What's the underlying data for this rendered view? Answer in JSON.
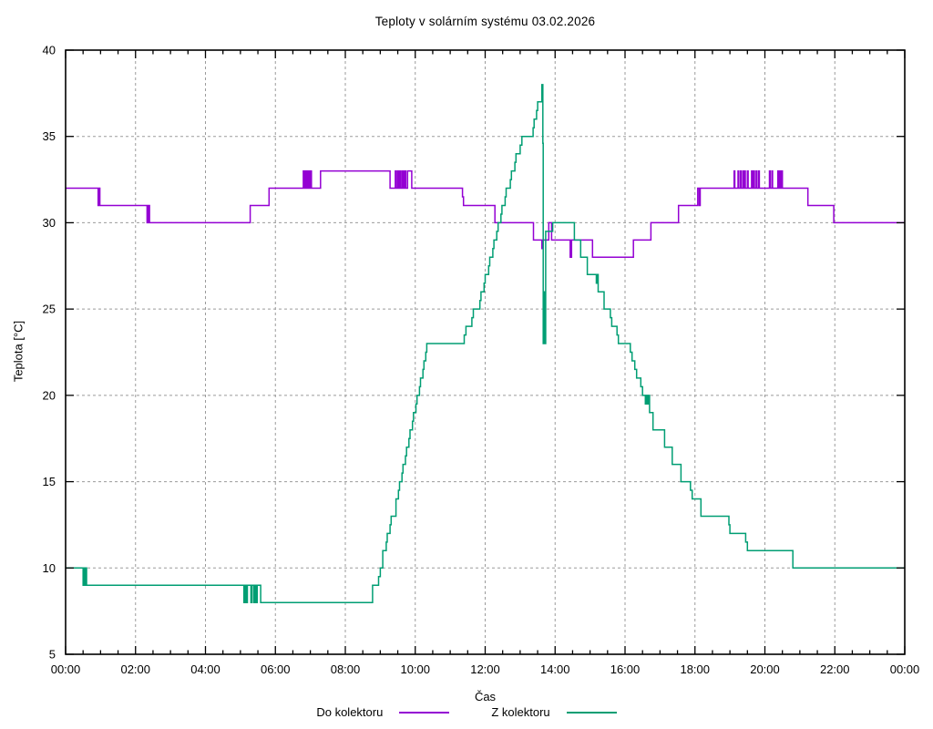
{
  "chart_data": {
    "type": "line",
    "title": "Teploty v solárním systému 03.02.2026",
    "xlabel": "Čas",
    "ylabel": "Teplota [°C]",
    "xlim": [
      0,
      24
    ],
    "ylim": [
      5,
      40
    ],
    "grid": true,
    "grid_color": "#9b9b9b",
    "axis_color": "#000000",
    "background": "#ffffff",
    "legend_position": "bottom-center",
    "x_tick_hours": [
      0,
      2,
      4,
      6,
      8,
      10,
      12,
      14,
      16,
      18,
      20,
      22,
      24
    ],
    "x_tick_labels": [
      "00:00",
      "02:00",
      "04:00",
      "06:00",
      "08:00",
      "10:00",
      "12:00",
      "14:00",
      "16:00",
      "18:00",
      "20:00",
      "22:00",
      "00:00"
    ],
    "x_minor_step_hours": 0.5,
    "y_tick_values": [
      5,
      10,
      15,
      20,
      25,
      30,
      35,
      40
    ],
    "series": [
      {
        "name": "Do kolektoru",
        "color": "#9400d3",
        "style": "steps",
        "points": [
          [
            0.0,
            32
          ],
          [
            0.93,
            31
          ],
          [
            0.95,
            32
          ],
          [
            0.98,
            31
          ],
          [
            2.33,
            30
          ],
          [
            2.36,
            31
          ],
          [
            2.4,
            30
          ],
          [
            5.28,
            31
          ],
          [
            5.82,
            32
          ],
          [
            6.8,
            33
          ],
          [
            6.83,
            32
          ],
          [
            6.86,
            33
          ],
          [
            6.89,
            32
          ],
          [
            6.93,
            33
          ],
          [
            6.96,
            32
          ],
          [
            7.0,
            33
          ],
          [
            7.03,
            32
          ],
          [
            7.29,
            33
          ],
          [
            9.28,
            32
          ],
          [
            9.43,
            33
          ],
          [
            9.46,
            32
          ],
          [
            9.5,
            33
          ],
          [
            9.53,
            32
          ],
          [
            9.56,
            33
          ],
          [
            9.59,
            32
          ],
          [
            9.63,
            33
          ],
          [
            9.66,
            32
          ],
          [
            9.7,
            33
          ],
          [
            9.73,
            32
          ],
          [
            9.78,
            33
          ],
          [
            9.9,
            32
          ],
          [
            11.35,
            31.5
          ],
          [
            11.38,
            31
          ],
          [
            12.28,
            30
          ],
          [
            13.38,
            29
          ],
          [
            13.62,
            28.5
          ],
          [
            13.64,
            29
          ],
          [
            13.82,
            30
          ],
          [
            13.9,
            29
          ],
          [
            14.43,
            28
          ],
          [
            14.47,
            29
          ],
          [
            15.07,
            28
          ],
          [
            16.24,
            29
          ],
          [
            16.74,
            30
          ],
          [
            17.53,
            31
          ],
          [
            18.08,
            32
          ],
          [
            18.12,
            31
          ],
          [
            18.15,
            32
          ],
          [
            19.12,
            33
          ],
          [
            19.14,
            32
          ],
          [
            19.23,
            33
          ],
          [
            19.25,
            32
          ],
          [
            19.3,
            33
          ],
          [
            19.32,
            32
          ],
          [
            19.37,
            33
          ],
          [
            19.39,
            32
          ],
          [
            19.42,
            33
          ],
          [
            19.44,
            32
          ],
          [
            19.5,
            33
          ],
          [
            19.52,
            32
          ],
          [
            19.62,
            33
          ],
          [
            19.64,
            32
          ],
          [
            19.68,
            33
          ],
          [
            19.7,
            32
          ],
          [
            19.75,
            33
          ],
          [
            19.77,
            32
          ],
          [
            19.82,
            33
          ],
          [
            19.84,
            32
          ],
          [
            20.13,
            33
          ],
          [
            20.15,
            32
          ],
          [
            20.2,
            33
          ],
          [
            20.22,
            32
          ],
          [
            20.37,
            33
          ],
          [
            20.39,
            32
          ],
          [
            20.43,
            33
          ],
          [
            20.45,
            32
          ],
          [
            20.48,
            33
          ],
          [
            20.5,
            32
          ],
          [
            21.23,
            31
          ],
          [
            21.97,
            30
          ]
        ]
      },
      {
        "name": "Z kolektoru",
        "color": "#009e73",
        "style": "steps",
        "points": [
          [
            0.0,
            10
          ],
          [
            0.5,
            9
          ],
          [
            0.52,
            10
          ],
          [
            0.55,
            9
          ],
          [
            0.57,
            10
          ],
          [
            0.6,
            9
          ],
          [
            5.1,
            8
          ],
          [
            5.13,
            9
          ],
          [
            5.17,
            8
          ],
          [
            5.2,
            9
          ],
          [
            5.3,
            8
          ],
          [
            5.33,
            9
          ],
          [
            5.38,
            8
          ],
          [
            5.41,
            9
          ],
          [
            5.45,
            8
          ],
          [
            5.48,
            9
          ],
          [
            5.58,
            8
          ],
          [
            8.78,
            9
          ],
          [
            8.95,
            9.5
          ],
          [
            9.0,
            10
          ],
          [
            9.07,
            11
          ],
          [
            9.17,
            11.5
          ],
          [
            9.2,
            12
          ],
          [
            9.28,
            12.5
          ],
          [
            9.31,
            13
          ],
          [
            9.45,
            14
          ],
          [
            9.52,
            14.5
          ],
          [
            9.55,
            15
          ],
          [
            9.62,
            15.5
          ],
          [
            9.65,
            16
          ],
          [
            9.72,
            16.5
          ],
          [
            9.75,
            17
          ],
          [
            9.82,
            17.5
          ],
          [
            9.85,
            18
          ],
          [
            9.92,
            18.5
          ],
          [
            9.95,
            19
          ],
          [
            10.02,
            19.5
          ],
          [
            10.05,
            20
          ],
          [
            10.12,
            20.5
          ],
          [
            10.15,
            21
          ],
          [
            10.22,
            21.5
          ],
          [
            10.25,
            22
          ],
          [
            10.3,
            22.5
          ],
          [
            10.33,
            23
          ],
          [
            11.4,
            23.5
          ],
          [
            11.45,
            24
          ],
          [
            11.62,
            24.5
          ],
          [
            11.66,
            25
          ],
          [
            11.85,
            25.5
          ],
          [
            11.88,
            26
          ],
          [
            11.97,
            26.5
          ],
          [
            12.0,
            27
          ],
          [
            12.1,
            27.5
          ],
          [
            12.13,
            28
          ],
          [
            12.22,
            28.5
          ],
          [
            12.25,
            29
          ],
          [
            12.33,
            29.5
          ],
          [
            12.37,
            30
          ],
          [
            12.45,
            30.5
          ],
          [
            12.48,
            31
          ],
          [
            12.57,
            31.5
          ],
          [
            12.6,
            32
          ],
          [
            12.72,
            32.5
          ],
          [
            12.75,
            33
          ],
          [
            12.85,
            33.5
          ],
          [
            12.88,
            34
          ],
          [
            13.0,
            34.5
          ],
          [
            13.05,
            35
          ],
          [
            13.37,
            35.5
          ],
          [
            13.4,
            36
          ],
          [
            13.47,
            36.5
          ],
          [
            13.5,
            37
          ],
          [
            13.62,
            38
          ],
          [
            13.65,
            34.6
          ],
          [
            13.66,
            23
          ],
          [
            13.69,
            26
          ],
          [
            13.7,
            23
          ],
          [
            13.73,
            29.5
          ],
          [
            13.93,
            30
          ],
          [
            14.55,
            29
          ],
          [
            14.73,
            28
          ],
          [
            14.92,
            27
          ],
          [
            15.18,
            26.5
          ],
          [
            15.2,
            27
          ],
          [
            15.23,
            26
          ],
          [
            15.4,
            25
          ],
          [
            15.58,
            24.5
          ],
          [
            15.62,
            24
          ],
          [
            15.77,
            23.5
          ],
          [
            15.81,
            23
          ],
          [
            16.15,
            22.5
          ],
          [
            16.2,
            22
          ],
          [
            16.28,
            21.5
          ],
          [
            16.33,
            21
          ],
          [
            16.45,
            20.5
          ],
          [
            16.5,
            20
          ],
          [
            16.58,
            19.5
          ],
          [
            16.61,
            20
          ],
          [
            16.64,
            19.5
          ],
          [
            16.67,
            20
          ],
          [
            16.7,
            19
          ],
          [
            16.8,
            18
          ],
          [
            17.13,
            17
          ],
          [
            17.35,
            16
          ],
          [
            17.6,
            15
          ],
          [
            17.87,
            14.5
          ],
          [
            17.92,
            14
          ],
          [
            18.17,
            13
          ],
          [
            18.97,
            12.5
          ],
          [
            19.0,
            12
          ],
          [
            19.45,
            11.5
          ],
          [
            19.5,
            11
          ],
          [
            20.8,
            10
          ]
        ]
      }
    ]
  },
  "legend": {
    "items": [
      {
        "label": "Do kolektoru",
        "color": "#9400d3"
      },
      {
        "label": "Z kolektoru",
        "color": "#009e73"
      }
    ]
  }
}
